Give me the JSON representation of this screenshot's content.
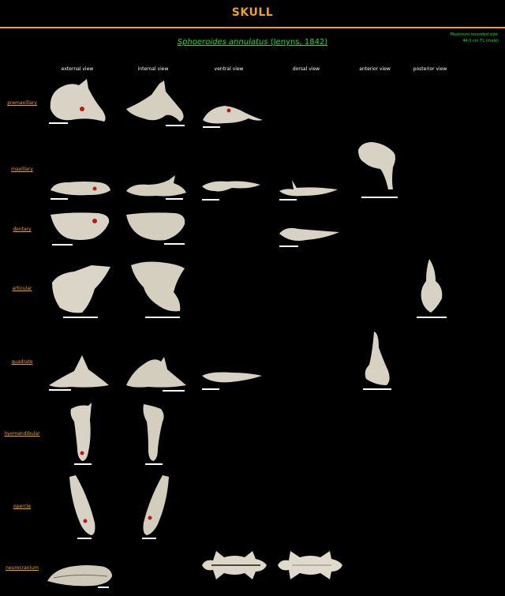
{
  "page_title": "SKULL",
  "species": {
    "name": "Sphoeroides annulatus",
    "authority": "(Jenyns, 1842)"
  },
  "max_size": {
    "line1": "Maximum recorded size:",
    "line2": "44.0 cm TL (male)"
  },
  "columns": [
    "external view",
    "internal view",
    "ventral view",
    "dorsal view",
    "anterior view",
    "posterior view"
  ],
  "rows": [
    "premaxillary",
    "maxillary",
    "dentary",
    "articular",
    "quadrate",
    "hyomandibular",
    "opercle",
    "neurocranium"
  ],
  "colors": {
    "accent": "#f0a020",
    "species_link": "#22dd22",
    "bone": "#d8d2c4",
    "background": "#000000"
  }
}
